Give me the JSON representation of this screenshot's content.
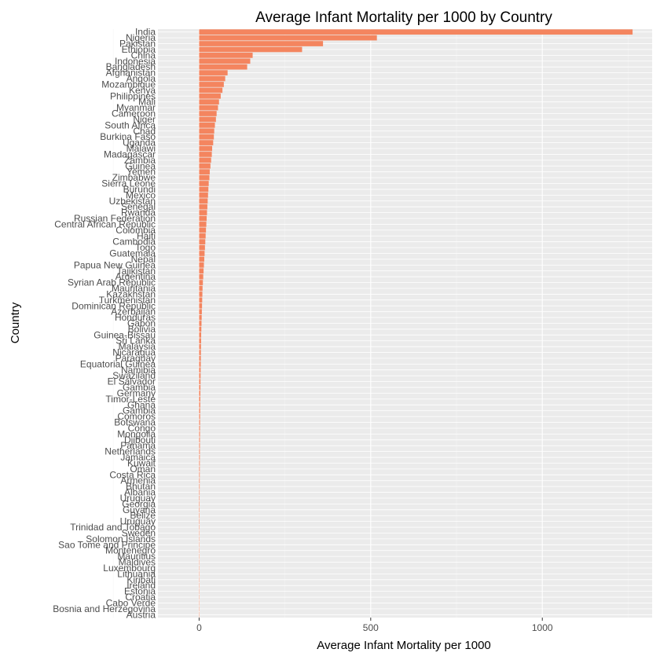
{
  "chart_data": {
    "type": "bar",
    "orientation": "horizontal",
    "title": "Average Infant Mortality per 1000 by Country",
    "xlabel": "Average Infant Mortality per 1000",
    "ylabel": "Country",
    "xlim": [
      0,
      1250
    ],
    "x_ticks": [
      "0",
      "500",
      "1000"
    ],
    "bar_color": "#F4855F",
    "panel_color": "#EBEBEB",
    "grid": true,
    "categories": [
      "India",
      "Nigeria",
      "Pakistan",
      "Ethiopia",
      "China",
      "Indonesia",
      "Bangladesh",
      "Afghanistan",
      "Angola",
      "Mozambique",
      "Kenya",
      "Philippines",
      "Mali",
      "Myanmar",
      "Cameroon",
      "Niger",
      "South Africa",
      "Chad",
      "Burkina Faso",
      "Uganda",
      "Malawi",
      "Madagascar",
      "Zambia",
      "Guinea",
      "Yemen",
      "Zimbabwe",
      "Sierra Leone",
      "Burundi",
      "Mexico",
      "Uzbekistan",
      "Senegal",
      "Rwanda",
      "Russian Federation",
      "Central African Republic",
      "Colombia",
      "Haiti",
      "Cambodia",
      "Togo",
      "Guatemala",
      "Nepal",
      "Papua New Guinea",
      "Tajikistan",
      "Argentina",
      "Syrian Arab Republic",
      "Mauritania",
      "Kazakhstan",
      "Turkmenistan",
      "Dominican Republic",
      "Azerbaijan",
      "Honduras",
      "Gabon",
      "Bolivia",
      "Guinea-Bissau",
      "Sri Lanka",
      "Malaysia",
      "Nicaragua",
      "Paraguay",
      "Equatorial Guinea",
      "Namibia",
      "Swaziland",
      "El Salvador",
      "Gambia",
      "Germany",
      "Timor-Leste",
      "Ghana",
      "Gambia",
      "Comoros",
      "Botswana",
      "Congo",
      "Mongolia",
      "Djibouti",
      "Panama",
      "Netherlands",
      "Jamaica",
      "Kuwait",
      "Oman",
      "Costa Rica",
      "Armenia",
      "Bhutan",
      "Albania",
      "Uruguay",
      "Georgia",
      "Guyana",
      "Belize",
      "Uruguay",
      "Trinidad and Tobago",
      "Sweden",
      "Solomon Islands",
      "Sao Tome and Principe",
      "Montenegro",
      "Mauritius",
      "Maldives",
      "Luxembourg",
      "Lithuania",
      "Kiribati",
      "Ireland",
      "Estonia",
      "Croatia",
      "Cabo Verde",
      "Bosnia and Herzegovina",
      "Austria"
    ],
    "values": [
      1263,
      518,
      361,
      300,
      156,
      149,
      140,
      83,
      76,
      72,
      68,
      63,
      58,
      55,
      51,
      49,
      46,
      44,
      43,
      41,
      38,
      37,
      35,
      33,
      31,
      30,
      28,
      27,
      26,
      25,
      24,
      23,
      22,
      21,
      20,
      19,
      18,
      17,
      16,
      15,
      14,
      13,
      12,
      11,
      10,
      9.5,
      9,
      8.5,
      8,
      7.5,
      7,
      6.5,
      6,
      5.8,
      5.5,
      5.2,
      5,
      4.8,
      4.5,
      4.3,
      4.1,
      3.9,
      3.7,
      3.5,
      3.3,
      3.1,
      2.9,
      2.8,
      2.6,
      2.5,
      2.4,
      2.3,
      2.2,
      2.1,
      2,
      1.9,
      1.8,
      1.7,
      1.6,
      1.5,
      1.4,
      1.35,
      1.3,
      1.25,
      1.2,
      1.1,
      1,
      0.95,
      0.9,
      0.85,
      0.8,
      0.75,
      0.7,
      0.65,
      0.6,
      0.5,
      0.45,
      0.4,
      0.35,
      0.3,
      0.2
    ]
  }
}
